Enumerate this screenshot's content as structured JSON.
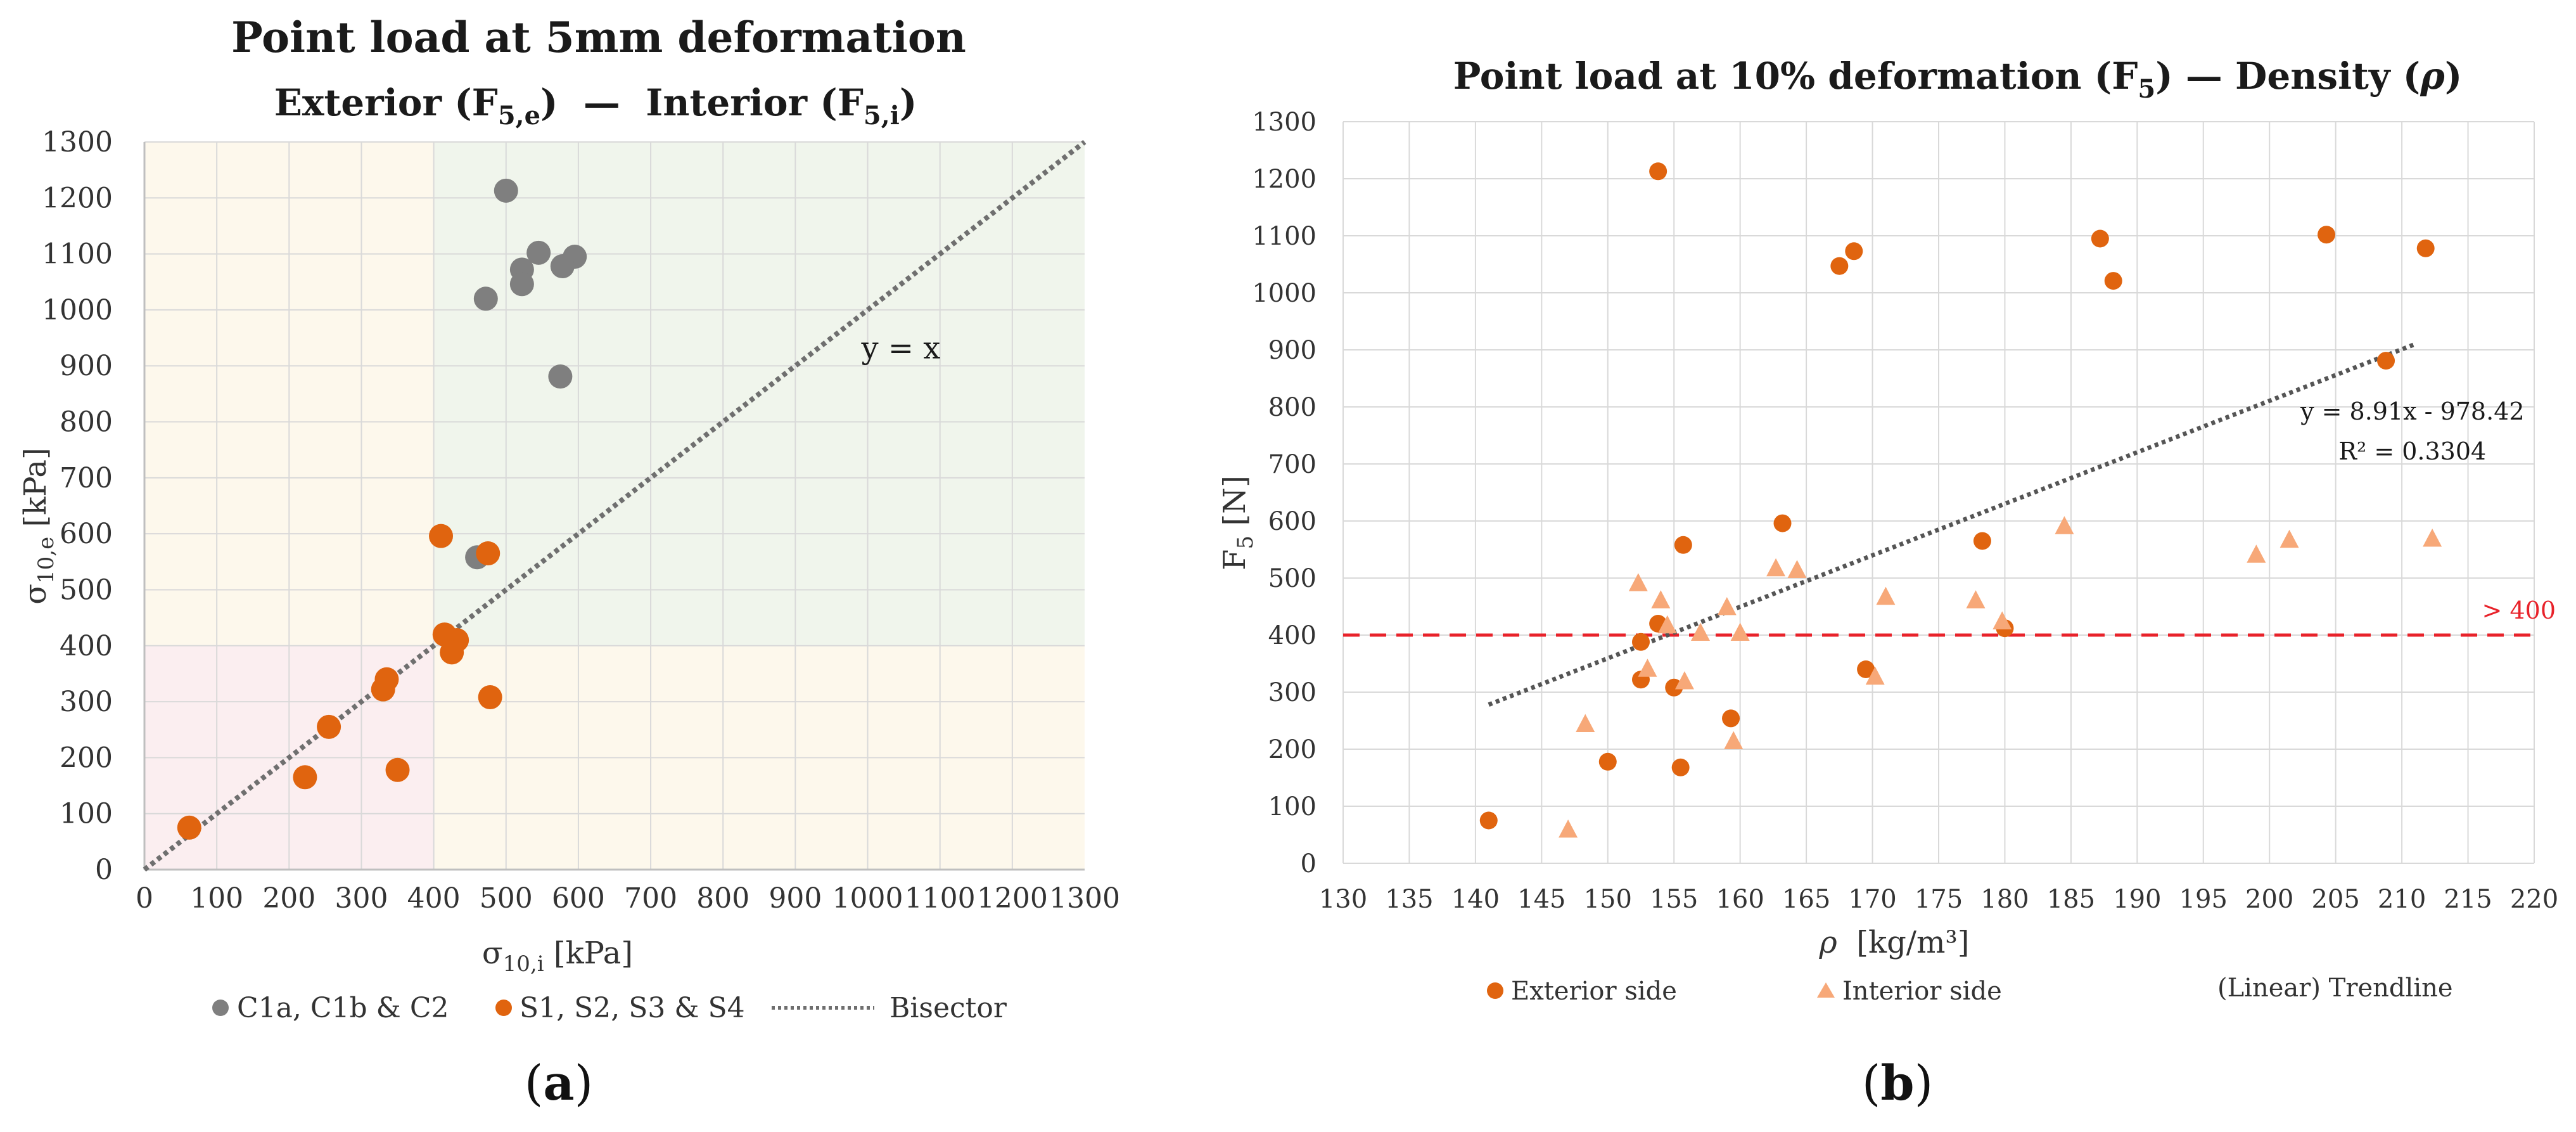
{
  "colors": {
    "gray_marker": "#7f7f7f",
    "orange_marker": "#e0640f",
    "light_orange_marker": "#f7a878",
    "bisector": "#6f6f6f",
    "trend": "#555555",
    "threshold": "#e8222a",
    "zone_yellow": "#fdf8ec",
    "zone_green": "#f0f5ec",
    "zone_red": "#fbeef0",
    "grid": "#d9d9d9"
  },
  "chart_data": [
    {
      "type": "scatter",
      "panel_label": "a",
      "title": "Point load at 5mm deformation",
      "subtitle": {
        "left": "Exterior (F",
        "left_sub": "5,e",
        "sep": ")  —  Interior (F",
        "right_sub": "5,i",
        "end": ")"
      },
      "xlabel": {
        "base": "σ",
        "sub": "10,i",
        "unit": " [kPa]"
      },
      "ylabel": {
        "base": "σ",
        "sub": "10,e",
        "unit": " [kPa]"
      },
      "xlim": [
        0,
        1300
      ],
      "ylim": [
        0,
        1300
      ],
      "xticks": [
        "0",
        "100",
        "200",
        "300",
        "400",
        "500",
        "600",
        "700",
        "800",
        "900",
        "1000",
        "1100",
        "1200",
        "1300"
      ],
      "yticks": [
        "0",
        "100",
        "200",
        "300",
        "400",
        "500",
        "600",
        "700",
        "800",
        "900",
        "1000",
        "1100",
        "1200",
        "1300"
      ],
      "zones": [
        {
          "name": "low-left",
          "x": [
            0,
            400
          ],
          "y": [
            0,
            400
          ],
          "color": "zone_red"
        },
        {
          "name": "top-left",
          "x": [
            0,
            400
          ],
          "y": [
            400,
            1300
          ],
          "color": "zone_yellow"
        },
        {
          "name": "bottom-right",
          "x": [
            400,
            1300
          ],
          "y": [
            0,
            400
          ],
          "color": "zone_yellow"
        },
        {
          "name": "top-right",
          "x": [
            400,
            1300
          ],
          "y": [
            400,
            1300
          ],
          "color": "zone_green"
        }
      ],
      "annotation": {
        "text": "y = x",
        "x": 1070,
        "y": 930
      },
      "series": [
        {
          "name": "C1a, C1b & C2",
          "color": "gray_marker",
          "points": [
            [
              500,
              1213
            ],
            [
              545,
              1102
            ],
            [
              522,
              1072
            ],
            [
              595,
              1095
            ],
            [
              578,
              1078
            ],
            [
              522,
              1046
            ],
            [
              472,
              1020
            ],
            [
              575,
              881
            ],
            [
              460,
              558
            ]
          ]
        },
        {
          "name": "S1, S2, S3 & S4",
          "color": "orange_marker",
          "points": [
            [
              410,
              596
            ],
            [
              475,
              565
            ],
            [
              415,
              420
            ],
            [
              432,
              410
            ],
            [
              425,
              388
            ],
            [
              335,
              340
            ],
            [
              330,
              322
            ],
            [
              255,
              255
            ],
            [
              478,
              308
            ],
            [
              350,
              178
            ],
            [
              222,
              165
            ],
            [
              62,
              75
            ]
          ]
        }
      ],
      "bisector": {
        "name": "Bisector",
        "from": [
          0,
          0
        ],
        "to": [
          1300,
          1300
        ]
      },
      "legend": [
        "C1a, C1b & C2",
        "S1, S2, S3 & S4",
        "Bisector"
      ]
    },
    {
      "type": "scatter",
      "panel_label": "b",
      "title": {
        "pre": "Point load at 10% deformation (F",
        "sub": "5",
        "mid": ") — Density (",
        "rho": "ρ",
        "end": ")"
      },
      "xlabel": {
        "rho": "ρ",
        "unit": "  [kg/m³]"
      },
      "ylabel": {
        "base": "F",
        "sub": "5",
        "unit": " [N]"
      },
      "xlim": [
        130,
        220
      ],
      "ylim": [
        0,
        1300
      ],
      "xticks": [
        "130",
        "135",
        "140",
        "145",
        "150",
        "155",
        "160",
        "165",
        "170",
        "175",
        "180",
        "185",
        "190",
        "195",
        "200",
        "205",
        "210",
        "215",
        "220"
      ],
      "yticks": [
        "0",
        "100",
        "200",
        "300",
        "400",
        "500",
        "600",
        "700",
        "800",
        "900",
        "1000",
        "1100",
        "1200",
        "1300"
      ],
      "series": [
        {
          "name": "Exterior side",
          "marker": "circle",
          "color": "orange_marker",
          "points": [
            [
              141,
              75
            ],
            [
              150,
              178
            ],
            [
              152.5,
              322
            ],
            [
              152.5,
              388
            ],
            [
              153.8,
              420
            ],
            [
              153.8,
              1213
            ],
            [
              155,
              308
            ],
            [
              155.5,
              168
            ],
            [
              155.7,
              558
            ],
            [
              159.3,
              254
            ],
            [
              163.2,
              596
            ],
            [
              167.5,
              1047
            ],
            [
              168.6,
              1073
            ],
            [
              169.5,
              340
            ],
            [
              178.3,
              565
            ],
            [
              180,
              412
            ],
            [
              187.2,
              1095
            ],
            [
              188.2,
              1021
            ],
            [
              204.3,
              1102
            ],
            [
              208.8,
              881
            ],
            [
              211.8,
              1078
            ]
          ]
        },
        {
          "name": "Interior side",
          "marker": "triangle",
          "color": "light_orange_marker",
          "points": [
            [
              147,
              60
            ],
            [
              148.3,
              245
            ],
            [
              152.3,
              492
            ],
            [
              153,
              342
            ],
            [
              154,
              462
            ],
            [
              154.5,
              418
            ],
            [
              155.8,
              320
            ],
            [
              157,
              405
            ],
            [
              159,
              450
            ],
            [
              159.5,
              215
            ],
            [
              160,
              405
            ],
            [
              162.7,
              518
            ],
            [
              164.3,
              515
            ],
            [
              170.2,
              328
            ],
            [
              171,
              468
            ],
            [
              177.8,
              462
            ],
            [
              179.8,
              425
            ],
            [
              184.5,
              592
            ],
            [
              199,
              542
            ],
            [
              201.5,
              568
            ],
            [
              212.3,
              570
            ]
          ]
        }
      ],
      "trendline": {
        "name": "(Linear) Trendline",
        "from": [
          141,
          278
        ],
        "to": [
          211,
          910
        ]
      },
      "equation": "y = 8.91x - 978.42",
      "r_squared": "R² = 0.3304",
      "threshold": {
        "value": 400,
        "label": "> 400"
      },
      "legend": [
        "Exterior side",
        "Interior side",
        "(Linear) Trendline"
      ]
    }
  ]
}
